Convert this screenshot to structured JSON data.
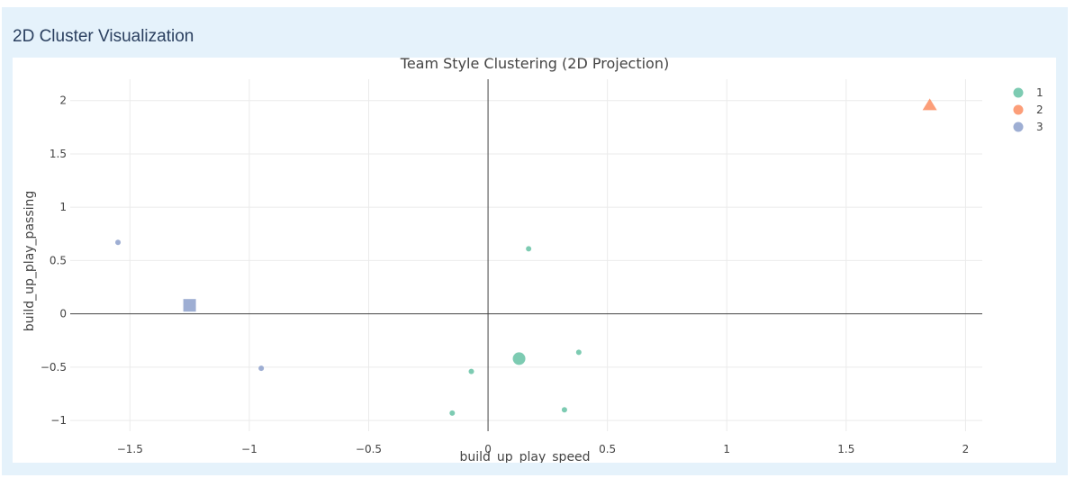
{
  "panel": {
    "title": "2D Cluster Visualization"
  },
  "chart_data": {
    "type": "scatter",
    "title": "Team Style Clustering (2D Projection)",
    "xlabel": "build_up_play_speed",
    "ylabel": "build_up_play_passing",
    "xlim": [
      -1.75,
      2.07
    ],
    "ylim": [
      -1.1,
      2.2
    ],
    "xticks": [
      -1.5,
      -1,
      -0.5,
      0,
      0.5,
      1,
      1.5,
      2
    ],
    "xtick_labels": [
      "−1.5",
      "−1",
      "−0.5",
      "0",
      "0.5",
      "1",
      "1.5",
      "2"
    ],
    "yticks": [
      -1,
      -0.5,
      0,
      0.5,
      1,
      1.5,
      2
    ],
    "ytick_labels": [
      "−1",
      "−0.5",
      "0",
      "0.5",
      "1",
      "1.5",
      "2"
    ],
    "grid": true,
    "zero_lines": true,
    "legend_position": "top-right",
    "series": [
      {
        "name": "1",
        "color": "#66c2a5",
        "points": [
          {
            "x": 0.17,
            "y": 0.61
          },
          {
            "x": 0.38,
            "y": -0.36
          },
          {
            "x": -0.07,
            "y": -0.54
          },
          {
            "x": 0.32,
            "y": -0.9
          },
          {
            "x": -0.15,
            "y": -0.93
          }
        ],
        "centroid": {
          "x": 0.13,
          "y": -0.42,
          "symbol": "circle"
        }
      },
      {
        "name": "2",
        "color": "#fc8d62",
        "points": [],
        "centroid": {
          "x": 1.85,
          "y": 1.96,
          "symbol": "triangle-up"
        }
      },
      {
        "name": "3",
        "color": "#8da0cb",
        "points": [
          {
            "x": -1.55,
            "y": 0.67
          },
          {
            "x": -0.95,
            "y": -0.51
          }
        ],
        "centroid": {
          "x": -1.25,
          "y": 0.08,
          "symbol": "square"
        }
      }
    ]
  }
}
